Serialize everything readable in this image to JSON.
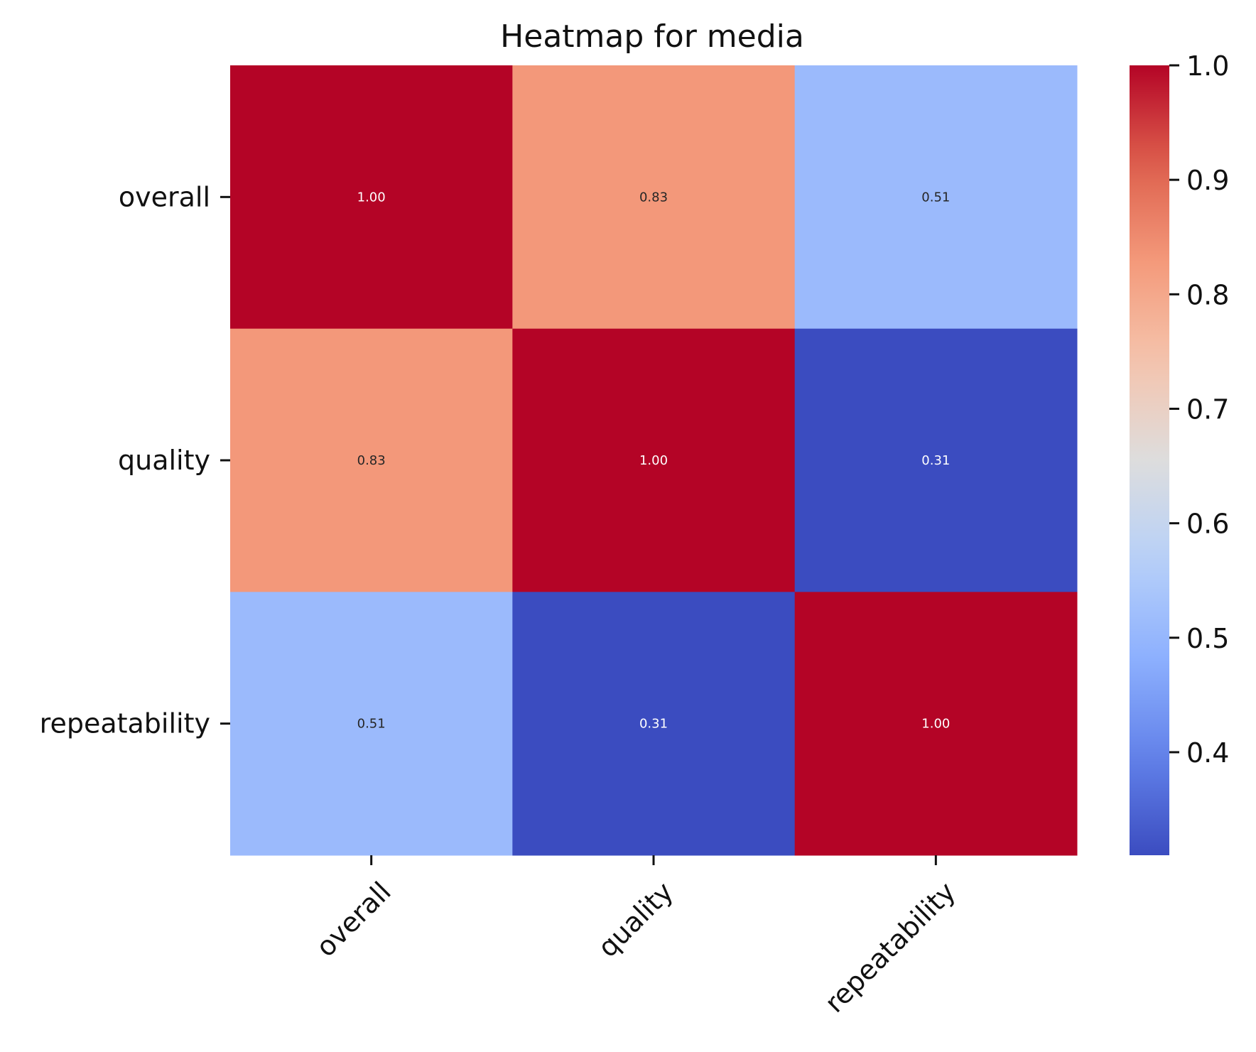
{
  "chart_data": {
    "type": "heatmap",
    "title": "Heatmap for media",
    "xlabel": "",
    "ylabel": "",
    "x_categories": [
      "overall",
      "quality",
      "repeatability"
    ],
    "y_categories": [
      "overall",
      "quality",
      "repeatability"
    ],
    "values": [
      [
        1.0,
        0.83,
        0.51
      ],
      [
        0.83,
        1.0,
        0.31
      ],
      [
        0.51,
        0.31,
        1.0
      ]
    ],
    "value_format": "0.00",
    "colormap": "coolwarm",
    "color_range": [
      0.31,
      1.0
    ],
    "colorbar_ticks": [
      0.4,
      0.5,
      0.6,
      0.7,
      0.8,
      0.9,
      1.0
    ],
    "grid": false,
    "legend": "colorbar-right"
  }
}
